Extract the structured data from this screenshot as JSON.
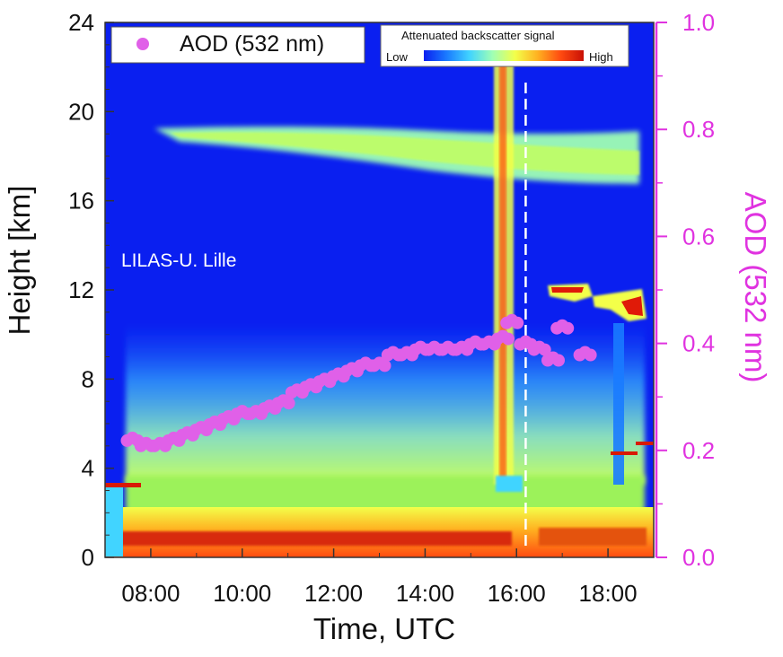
{
  "chart_data": {
    "type": "heatmap",
    "xlabel": "Time, UTC",
    "ylabel_left": "Height [km]",
    "ylabel_right": "AOD (532 nm)",
    "x_ticks": [
      "08:00",
      "10:00",
      "12:00",
      "14:00",
      "16:00",
      "18:00"
    ],
    "x_range_hours": [
      7.0,
      19.0
    ],
    "y_left_ticks": [
      "0",
      "4",
      "8",
      "12",
      "16",
      "20",
      "24"
    ],
    "y_left_range": [
      0,
      24
    ],
    "y_right_ticks": [
      "0.0",
      "0.2",
      "0.4",
      "0.6",
      "0.8",
      "1.0"
    ],
    "y_right_range": [
      0.0,
      1.0
    ],
    "annotation": "LILAS-U. Lille",
    "colorbar": {
      "title": "Attenuated backscatter signal",
      "low": "Low",
      "high": "High",
      "colors": [
        "#0a1ff0",
        "#1a7bff",
        "#41d4ff",
        "#9fffb5",
        "#f3ff4a",
        "#ffb020",
        "#ff4a10",
        "#c80f05"
      ]
    },
    "series": [
      {
        "name": "AOD (532 nm)",
        "color": "#e060e8",
        "points": [
          [
            7.6,
            0.22
          ],
          [
            7.9,
            0.21
          ],
          [
            8.2,
            0.21
          ],
          [
            8.5,
            0.22
          ],
          [
            8.8,
            0.23
          ],
          [
            9.1,
            0.24
          ],
          [
            9.4,
            0.25
          ],
          [
            9.7,
            0.26
          ],
          [
            10.0,
            0.27
          ],
          [
            10.3,
            0.27
          ],
          [
            10.6,
            0.28
          ],
          [
            10.9,
            0.29
          ],
          [
            11.2,
            0.31
          ],
          [
            11.5,
            0.32
          ],
          [
            11.8,
            0.33
          ],
          [
            12.1,
            0.34
          ],
          [
            12.4,
            0.35
          ],
          [
            12.7,
            0.36
          ],
          [
            13.0,
            0.36
          ],
          [
            13.3,
            0.38
          ],
          [
            13.6,
            0.38
          ],
          [
            13.9,
            0.39
          ],
          [
            14.2,
            0.39
          ],
          [
            14.5,
            0.39
          ],
          [
            14.8,
            0.39
          ],
          [
            15.1,
            0.4
          ],
          [
            15.4,
            0.4
          ],
          [
            15.7,
            0.41
          ],
          [
            15.9,
            0.44
          ],
          [
            16.2,
            0.4
          ],
          [
            16.5,
            0.39
          ],
          [
            16.8,
            0.37
          ],
          [
            17.0,
            0.43
          ],
          [
            17.5,
            0.38
          ]
        ]
      }
    ],
    "colors": {
      "background": "#0a1ff0",
      "right_axis": "#e033e0",
      "dashed_line": "#ffffff"
    },
    "dashed_line_x": 16.2,
    "grid": false,
    "legend_position": "top-left"
  }
}
